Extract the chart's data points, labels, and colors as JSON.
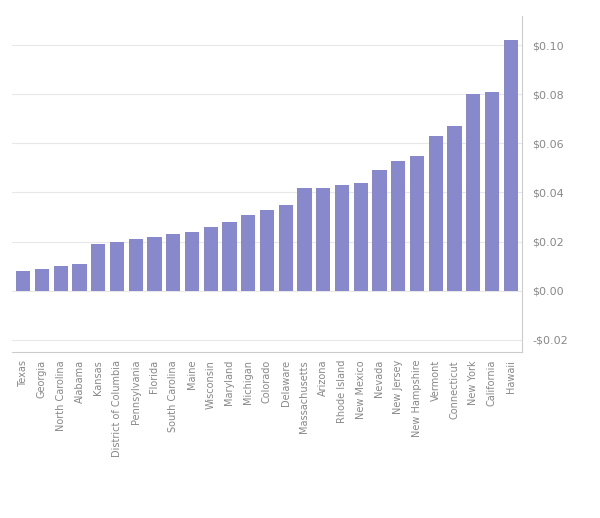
{
  "states": [
    "Texas",
    "Georgia",
    "North Carolina",
    "Alabama",
    "Kansas",
    "District of Columbia",
    "Pennsylvania",
    "Florida",
    "South Carolina",
    "Maine",
    "Wisconsin",
    "Maryland",
    "Michigan",
    "Colorado",
    "Delaware",
    "Massachusetts",
    "Arizona",
    "Rhode Island",
    "New Mexico",
    "Nevada",
    "New Jersey",
    "New Hampshire",
    "Vermont",
    "Connecticut",
    "New York",
    "California",
    "Hawaii"
  ],
  "values": [
    0.008,
    0.009,
    0.01,
    0.011,
    0.019,
    0.02,
    0.021,
    0.022,
    0.023,
    0.024,
    0.026,
    0.028,
    0.031,
    0.033,
    0.035,
    0.042,
    0.042,
    0.043,
    0.044,
    0.049,
    0.053,
    0.055,
    0.063,
    0.067,
    0.08,
    0.081,
    0.102
  ],
  "bar_color": "#8888cc",
  "background_color": "#ffffff",
  "ylim": [
    -0.025,
    0.112
  ],
  "yticks": [
    -0.02,
    0.0,
    0.02,
    0.04,
    0.06,
    0.08,
    0.1
  ],
  "ytick_labels": [
    "-$0.02",
    "$0.00",
    "$0.02",
    "$0.04",
    "$0.06",
    "$0.08",
    "$0.10"
  ],
  "tick_color": "#888888",
  "spine_color": "#cccccc",
  "grid_color": "#e8e8e8"
}
